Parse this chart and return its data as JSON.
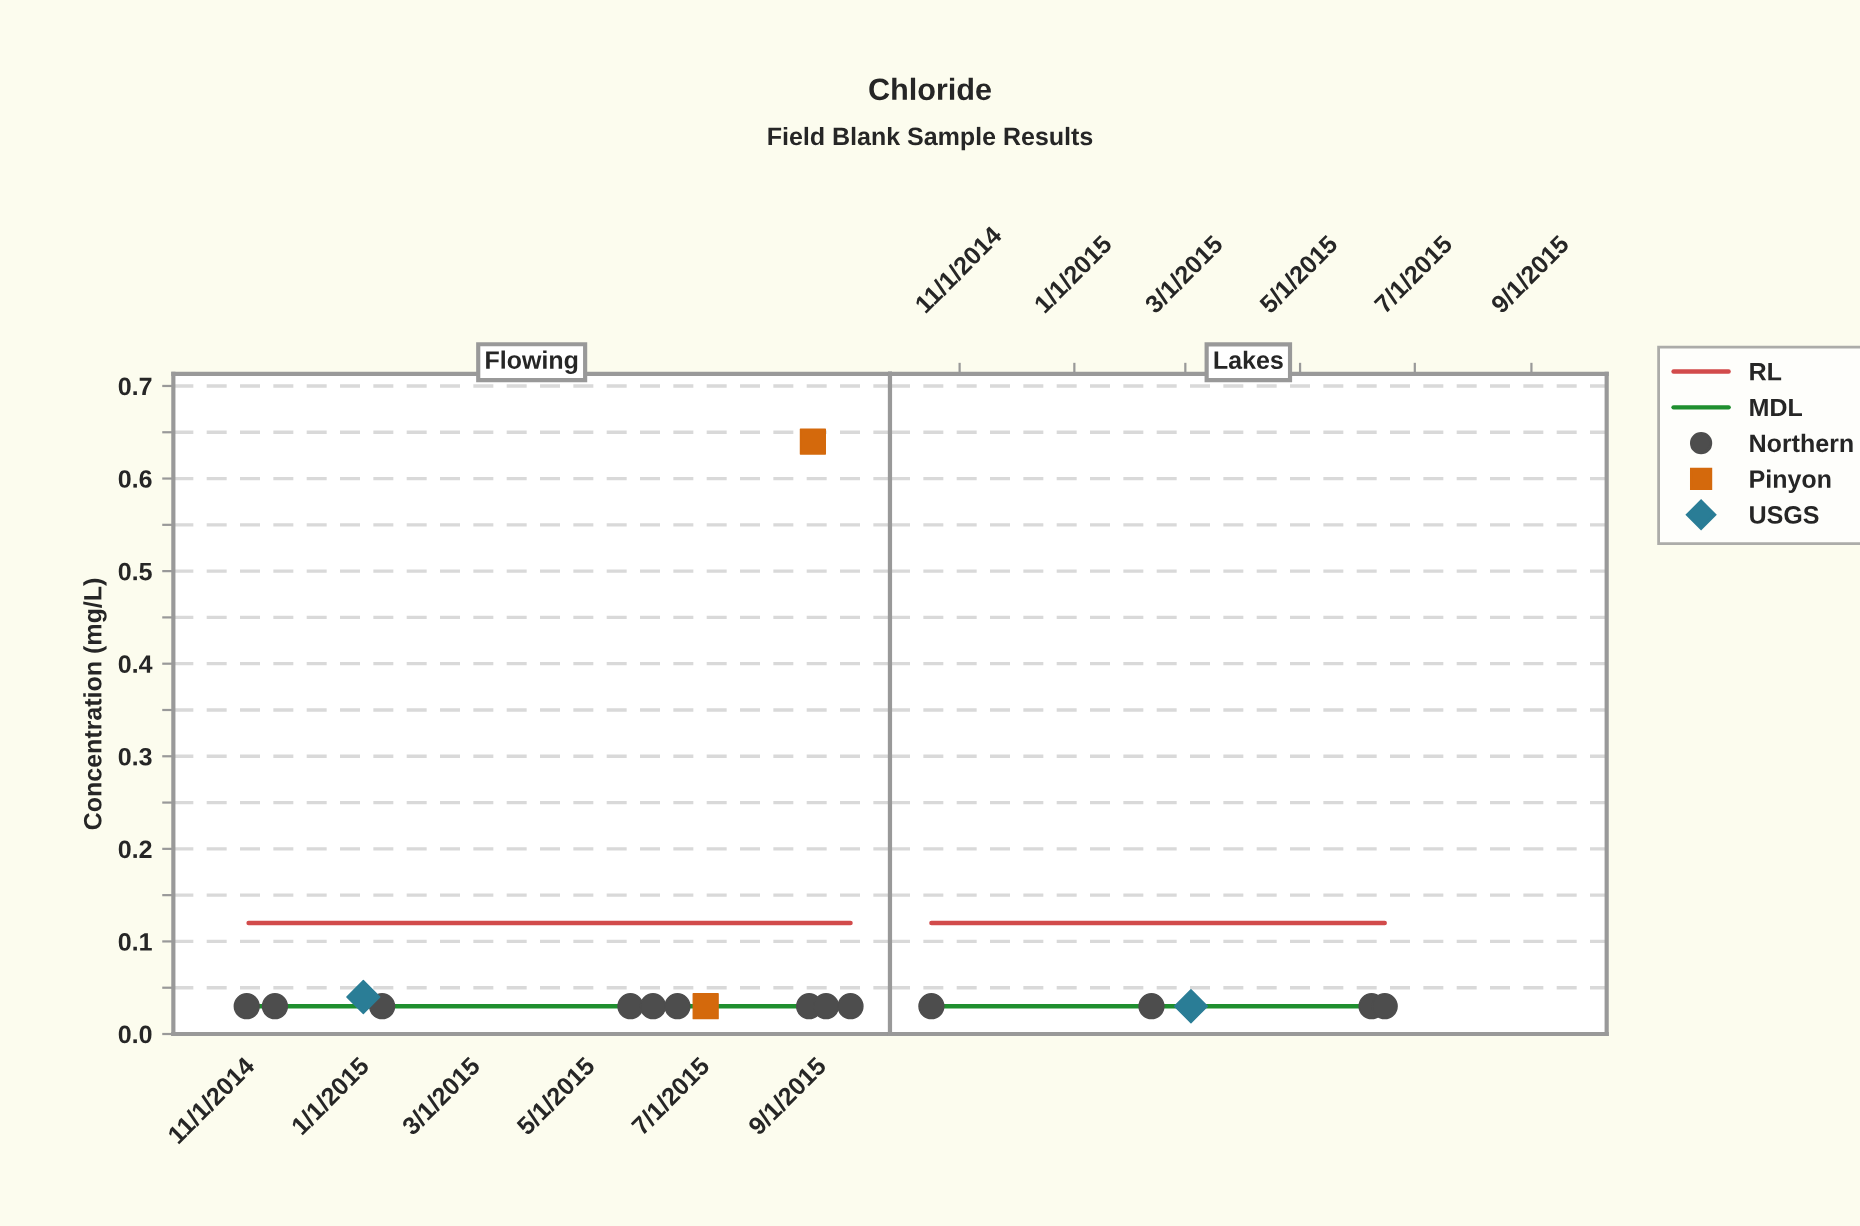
{
  "chart_data": [
    {
      "type": "scatter",
      "title": "Chloride",
      "subtitle": "Field Blank Sample Results",
      "annotations": [
        "Flowing"
      ],
      "ylabel": "Concentration (mg/L)",
      "xlim": [
        "2014-09-25",
        "2015-10-11"
      ],
      "xticks": [
        {
          "value": "2014-11-01",
          "label": "11/1/2014"
        },
        {
          "value": "2015-01-01",
          "label": "1/1/2015"
        },
        {
          "value": "2015-03-01",
          "label": "3/1/2015"
        },
        {
          "value": "2015-05-01",
          "label": "5/1/2015"
        },
        {
          "value": "2015-07-01",
          "label": "7/1/2015"
        },
        {
          "value": "2015-09-01",
          "label": "9/1/2015"
        }
      ],
      "ylim": [
        0,
        0.713
      ],
      "yticks": [
        {
          "value": 0,
          "label": "0.0"
        },
        {
          "value": 0.05,
          "label": null
        },
        0.1,
        {
          "value": 0.15,
          "label": null
        },
        0.2,
        {
          "value": 0.25,
          "label": null
        },
        0.3,
        {
          "value": 0.35,
          "label": null
        },
        0.4,
        {
          "value": 0.45,
          "label": null
        },
        0.5,
        {
          "value": 0.55,
          "label": null
        },
        0.6,
        {
          "value": 0.65,
          "label": null
        },
        0.7
      ],
      "grid": "y",
      "legend": "right",
      "series": [
        {
          "name": "RL",
          "type": "line",
          "line_style": "solid",
          "color": "#d24b4b",
          "x": [
            "2014-11-04",
            "2015-09-20"
          ],
          "values": [
            0.12,
            0.12
          ]
        },
        {
          "name": "MDL",
          "type": "line",
          "line_style": "solid",
          "color": "#1f8f2f",
          "x": [
            "2014-11-03",
            "2015-09-20"
          ],
          "values": [
            0.03,
            0.03
          ]
        },
        {
          "name": "Northern",
          "type": "scatter",
          "marker": "circle",
          "color": "#4d4d4d",
          "x": [
            "2014-11-03",
            "2014-11-18",
            "2015-01-14",
            "2015-05-26",
            "2015-06-07",
            "2015-06-20",
            "2015-08-29",
            "2015-09-07",
            "2015-09-20"
          ],
          "values": [
            0.03,
            0.03,
            0.03,
            0.03,
            0.03,
            0.03,
            0.03,
            0.03,
            0.03
          ]
        },
        {
          "name": "Pinyon",
          "type": "scatter",
          "marker": "square",
          "color": "#d4690c",
          "x": [
            "2015-07-05",
            "2015-08-31"
          ],
          "values": [
            0.03,
            0.64
          ]
        },
        {
          "name": "USGS",
          "type": "scatter",
          "marker": "diamond",
          "color": "#2a7d96",
          "x": [
            "2015-01-04"
          ],
          "values": [
            0.04
          ]
        }
      ]
    },
    {
      "type": "scatter",
      "annotations": [
        "Lakes"
      ],
      "tick_labels": "x",
      "xlim": [
        "2014-09-25",
        "2015-10-11"
      ],
      "xticks": [
        {
          "value": "2014-11-01",
          "label": "11/1/2014"
        },
        {
          "value": "2015-01-01",
          "label": "1/1/2015"
        },
        {
          "value": "2015-03-01",
          "label": "3/1/2015"
        },
        {
          "value": "2015-05-01",
          "label": "5/1/2015"
        },
        {
          "value": "2015-07-01",
          "label": "7/1/2015"
        },
        {
          "value": "2015-09-01",
          "label": "9/1/2015"
        }
      ],
      "ylim": [
        0,
        0.713
      ],
      "yticks": [
        0,
        0.05,
        0.1,
        0.15,
        0.2,
        0.25,
        0.3,
        0.35,
        0.4,
        0.45,
        0.5,
        0.55,
        0.6,
        0.65,
        0.7
      ],
      "grid": "y",
      "series": [
        {
          "type": "line",
          "line_style": "solid",
          "color": "#d24b4b",
          "x": [
            "2014-10-17",
            "2015-06-15"
          ],
          "values": [
            0.12,
            0.12
          ]
        },
        {
          "type": "line",
          "line_style": "solid",
          "color": "#1f8f2f",
          "x": [
            "2014-10-17",
            "2015-06-15"
          ],
          "values": [
            0.03,
            0.03
          ]
        },
        {
          "type": "scatter",
          "marker": "circle",
          "color": "#4d4d4d",
          "x": [
            "2014-10-17",
            "2015-02-11",
            "2015-06-08",
            "2015-06-15"
          ],
          "values": [
            0.03,
            0.03,
            0.03,
            0.03
          ]
        },
        {
          "type": "scatter",
          "marker": "diamond",
          "color": "#2a7d96",
          "x": [
            "2015-03-04"
          ],
          "values": [
            0.03
          ]
        }
      ]
    }
  ]
}
